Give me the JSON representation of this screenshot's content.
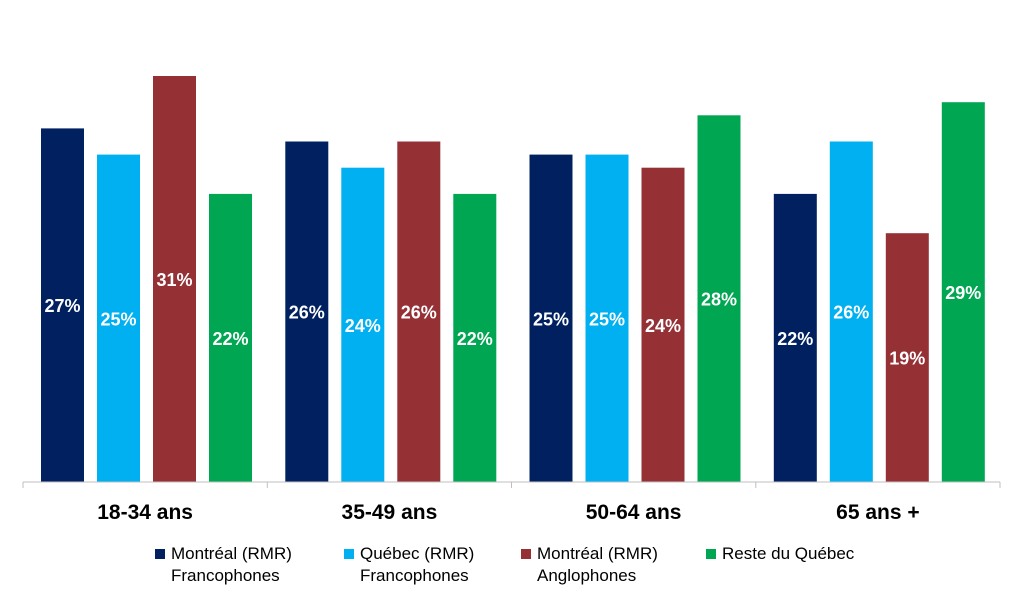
{
  "chart_data": {
    "type": "bar",
    "categories": [
      "18-34 ans",
      "35-49 ans",
      "50-64 ans",
      "65 ans +"
    ],
    "series": [
      {
        "name": [
          "Montréal (RMR)",
          "Francophones"
        ],
        "values": [
          27,
          26,
          25,
          22
        ],
        "labels": [
          "27%",
          "26%",
          "25%",
          "22%"
        ],
        "color": "#002060"
      },
      {
        "name": [
          "Québec (RMR)",
          "Francophones"
        ],
        "values": [
          25,
          24,
          25,
          26
        ],
        "labels": [
          "25%",
          "24%",
          "25%",
          "26%"
        ],
        "color": "#00B0F0"
      },
      {
        "name": [
          "Montréal (RMR)",
          "Anglophones"
        ],
        "values": [
          31,
          26,
          24,
          19
        ],
        "labels": [
          "31%",
          "26%",
          "24%",
          "19%"
        ],
        "color": "#953035"
      },
      {
        "name": [
          "Reste du Québec"
        ],
        "values": [
          22,
          22,
          28,
          29
        ],
        "labels": [
          "22%",
          "22%",
          "28%",
          "29%"
        ],
        "color": "#00A651"
      }
    ],
    "ylim": [
      0,
      33
    ],
    "grid": false,
    "legend_position": "bottom"
  }
}
